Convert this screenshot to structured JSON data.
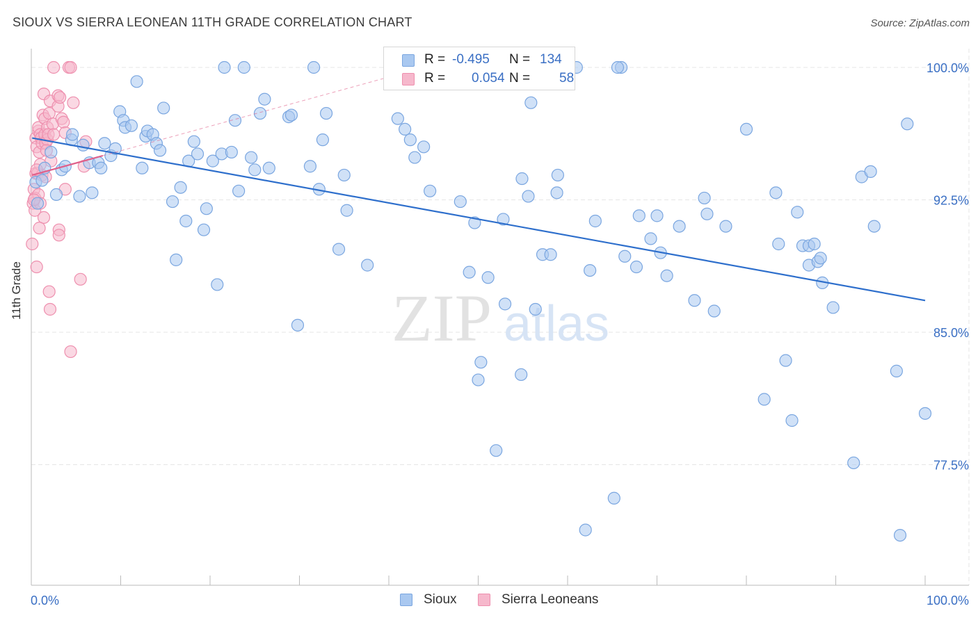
{
  "header": {
    "title": "SIOUX VS SIERRA LEONEAN 11TH GRADE CORRELATION CHART",
    "source": "Source: ZipAtlas.com"
  },
  "watermark": {
    "zip": "ZIP",
    "atlas": "atlas"
  },
  "colors": {
    "sioux_fill": "#a9c8f0",
    "sioux_stroke": "#7aa6e0",
    "sioux_line": "#2e6fcc",
    "sierra_fill": "#f6b8cc",
    "sierra_stroke": "#ee8fae",
    "sierra_line": "#e0608a",
    "grid": "#e6e6e6",
    "axis_label": "#3a6fc4"
  },
  "legend": {
    "rows": [
      {
        "r_label": "R =",
        "r_value": "-0.495",
        "n_label": "N =",
        "n_value": "134"
      },
      {
        "r_label": "R =",
        "r_value": "0.054",
        "n_label": "N =",
        "n_value": "58"
      }
    ]
  },
  "chart_data": {
    "type": "scatter",
    "title": "SIOUX VS SIERRA LEONEAN 11TH GRADE CORRELATION CHART",
    "xlabel": "",
    "ylabel": "11th Grade",
    "xlim": [
      0,
      100
    ],
    "ylim": [
      71.0,
      101.5
    ],
    "x_tick_labels": [
      "0.0%",
      "100.0%"
    ],
    "y_ticks": [
      {
        "value": 100.0,
        "label": "100.0%"
      },
      {
        "value": 92.5,
        "label": "92.5%"
      },
      {
        "value": 85.0,
        "label": "85.0%"
      },
      {
        "value": 77.5,
        "label": "77.5%"
      }
    ],
    "grid": true,
    "legend_position": "top-center",
    "series": [
      {
        "name": "Sioux",
        "R": -0.495,
        "N": 134,
        "trend": {
          "x": [
            0.1,
            100.0
          ],
          "y": [
            96.0,
            86.8
          ]
        },
        "points": [
          [
            0.5,
            93.5
          ],
          [
            0.7,
            92.3
          ],
          [
            1.2,
            93.6
          ],
          [
            1.5,
            94.3
          ],
          [
            2.2,
            95.2
          ],
          [
            2.8,
            92.8
          ],
          [
            3.4,
            94.2
          ],
          [
            3.8,
            94.4
          ],
          [
            4.5,
            95.9
          ],
          [
            4.6,
            96.2
          ],
          [
            5.4,
            92.7
          ],
          [
            5.8,
            95.6
          ],
          [
            6.5,
            94.6
          ],
          [
            6.8,
            92.9
          ],
          [
            7.5,
            94.6
          ],
          [
            7.8,
            94.3
          ],
          [
            8.2,
            95.7
          ],
          [
            8.9,
            95.0
          ],
          [
            9.4,
            95.4
          ],
          [
            9.9,
            97.5
          ],
          [
            10.3,
            97.0
          ],
          [
            10.5,
            96.6
          ],
          [
            11.2,
            96.7
          ],
          [
            11.8,
            99.2
          ],
          [
            12.4,
            94.3
          ],
          [
            12.8,
            96.1
          ],
          [
            13.0,
            96.4
          ],
          [
            13.6,
            96.2
          ],
          [
            14.0,
            95.7
          ],
          [
            14.4,
            95.3
          ],
          [
            14.8,
            97.7
          ],
          [
            15.8,
            92.4
          ],
          [
            16.2,
            89.1
          ],
          [
            16.7,
            93.2
          ],
          [
            17.3,
            91.3
          ],
          [
            17.6,
            94.7
          ],
          [
            18.2,
            95.8
          ],
          [
            18.6,
            95.1
          ],
          [
            19.3,
            90.8
          ],
          [
            19.6,
            92.0
          ],
          [
            20.3,
            94.7
          ],
          [
            20.8,
            87.7
          ],
          [
            21.3,
            95.1
          ],
          [
            21.6,
            100.0
          ],
          [
            22.4,
            95.2
          ],
          [
            22.8,
            97.0
          ],
          [
            23.2,
            93.0
          ],
          [
            23.8,
            100.0
          ],
          [
            24.6,
            94.9
          ],
          [
            25.0,
            94.2
          ],
          [
            25.6,
            97.4
          ],
          [
            26.1,
            98.2
          ],
          [
            26.6,
            94.3
          ],
          [
            28.8,
            97.2
          ],
          [
            29.1,
            97.3
          ],
          [
            29.8,
            85.4
          ],
          [
            31.2,
            94.4
          ],
          [
            31.6,
            100.0
          ],
          [
            32.2,
            93.1
          ],
          [
            32.6,
            95.9
          ],
          [
            33.0,
            97.4
          ],
          [
            34.4,
            89.7
          ],
          [
            35.0,
            93.9
          ],
          [
            35.3,
            91.9
          ],
          [
            37.6,
            88.8
          ],
          [
            40.6,
            100.0
          ],
          [
            41.0,
            97.1
          ],
          [
            41.8,
            96.5
          ],
          [
            42.4,
            95.9
          ],
          [
            42.9,
            94.9
          ],
          [
            43.9,
            95.5
          ],
          [
            44.6,
            93.0
          ],
          [
            47.5,
            100.0
          ],
          [
            48.0,
            92.4
          ],
          [
            49.0,
            88.4
          ],
          [
            49.6,
            91.2
          ],
          [
            50.0,
            82.3
          ],
          [
            50.3,
            83.3
          ],
          [
            51.1,
            88.1
          ],
          [
            52.0,
            78.3
          ],
          [
            53.0,
            86.6
          ],
          [
            52.8,
            91.4
          ],
          [
            54.8,
            82.6
          ],
          [
            54.9,
            93.7
          ],
          [
            55.6,
            92.7
          ],
          [
            55.9,
            98.0
          ],
          [
            56.4,
            86.3
          ],
          [
            57.2,
            89.4
          ],
          [
            58.8,
            92.9
          ],
          [
            58.9,
            93.9
          ],
          [
            61.0,
            100.0
          ],
          [
            62.0,
            73.8
          ],
          [
            62.5,
            88.5
          ],
          [
            63.1,
            91.3
          ],
          [
            65.2,
            75.6
          ],
          [
            66.0,
            100.0
          ],
          [
            66.4,
            89.3
          ],
          [
            67.7,
            88.7
          ],
          [
            68.0,
            91.6
          ],
          [
            70.0,
            91.6
          ],
          [
            69.3,
            90.3
          ],
          [
            70.4,
            89.5
          ],
          [
            71.1,
            88.2
          ],
          [
            72.5,
            91.0
          ],
          [
            74.2,
            86.8
          ],
          [
            75.3,
            92.6
          ],
          [
            76.4,
            86.2
          ],
          [
            75.6,
            91.7
          ],
          [
            77.7,
            91.0
          ],
          [
            80.0,
            96.5
          ],
          [
            82.0,
            81.2
          ],
          [
            83.3,
            92.9
          ],
          [
            83.6,
            90.0
          ],
          [
            84.4,
            83.4
          ],
          [
            85.1,
            80.0
          ],
          [
            85.7,
            91.8
          ],
          [
            86.3,
            89.9
          ],
          [
            87.0,
            89.9
          ],
          [
            87.0,
            88.8
          ],
          [
            87.6,
            90.0
          ],
          [
            88.0,
            89.0
          ],
          [
            88.3,
            89.2
          ],
          [
            88.5,
            87.8
          ],
          [
            89.7,
            86.4
          ],
          [
            92.0,
            77.6
          ],
          [
            92.9,
            93.8
          ],
          [
            93.9,
            94.1
          ],
          [
            94.3,
            91.0
          ],
          [
            96.8,
            82.8
          ],
          [
            97.2,
            73.5
          ],
          [
            98.0,
            96.8
          ],
          [
            100.0,
            80.4
          ],
          [
            65.6,
            100.0
          ],
          [
            58.1,
            89.4
          ]
        ]
      },
      {
        "name": "Sierra Leoneans",
        "R": 0.054,
        "N": 58,
        "trend": {
          "x": [
            0.1,
            8.0
          ],
          "y": [
            93.9,
            95.0
          ]
        },
        "points": [
          [
            0.1,
            90.0
          ],
          [
            0.2,
            92.3
          ],
          [
            0.3,
            93.1
          ],
          [
            0.4,
            91.9
          ],
          [
            0.4,
            92.6
          ],
          [
            0.5,
            94.0
          ],
          [
            0.5,
            96.0
          ],
          [
            0.6,
            88.7
          ],
          [
            0.6,
            95.5
          ],
          [
            0.7,
            94.0
          ],
          [
            0.8,
            96.4
          ],
          [
            0.8,
            96.6
          ],
          [
            0.8,
            92.8
          ],
          [
            0.9,
            95.2
          ],
          [
            1.0,
            96.2
          ],
          [
            1.0,
            92.3
          ],
          [
            1.1,
            96.0
          ],
          [
            1.2,
            93.9
          ],
          [
            1.2,
            95.7
          ],
          [
            1.3,
            97.3
          ],
          [
            1.4,
            98.5
          ],
          [
            1.4,
            91.5
          ],
          [
            1.5,
            96.2
          ],
          [
            1.5,
            97.1
          ],
          [
            1.6,
            93.8
          ],
          [
            1.6,
            95.7
          ],
          [
            1.8,
            95.9
          ],
          [
            1.8,
            96.6
          ],
          [
            1.9,
            96.2
          ],
          [
            2.0,
            97.4
          ],
          [
            2.0,
            87.3
          ],
          [
            2.1,
            86.3
          ],
          [
            2.1,
            98.1
          ],
          [
            2.2,
            94.7
          ],
          [
            2.4,
            96.8
          ],
          [
            2.5,
            100.0
          ],
          [
            2.5,
            96.2
          ],
          [
            3.0,
            98.4
          ],
          [
            3.0,
            97.8
          ],
          [
            3.1,
            90.8
          ],
          [
            3.1,
            90.5
          ],
          [
            3.2,
            98.3
          ],
          [
            3.4,
            97.1
          ],
          [
            3.6,
            96.9
          ],
          [
            3.8,
            96.3
          ],
          [
            3.8,
            93.1
          ],
          [
            4.2,
            100.0
          ],
          [
            4.4,
            100.0
          ],
          [
            4.4,
            83.9
          ],
          [
            4.7,
            98.0
          ],
          [
            5.5,
            88.0
          ],
          [
            5.9,
            94.4
          ],
          [
            6.1,
            95.8
          ],
          [
            1.0,
            94.5
          ],
          [
            0.6,
            94.2
          ],
          [
            1.7,
            95.3
          ],
          [
            0.3,
            92.5
          ],
          [
            0.9,
            90.9
          ]
        ]
      }
    ]
  }
}
